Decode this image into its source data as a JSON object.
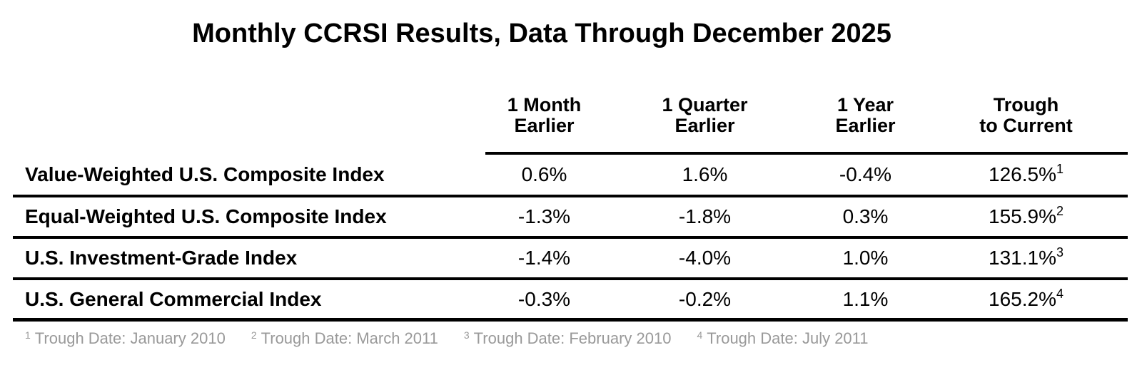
{
  "title": "Monthly CCRSI Results, Data Through December 2025",
  "colors": {
    "text": "#000000",
    "footnote_text": "#999999",
    "rule": "#000000",
    "background": "#ffffff"
  },
  "header_columns": [
    {
      "line1": "1 Month",
      "line2": "Earlier"
    },
    {
      "line1": "1 Quarter",
      "line2": "Earlier"
    },
    {
      "line1": "1 Year",
      "line2": "Earlier"
    },
    {
      "line1": "Trough",
      "line2": "to Current"
    }
  ],
  "chart_data": {
    "type": "table",
    "title": "Monthly CCRSI Results, Data Through December 2025",
    "columns": [
      "1 Month Earlier",
      "1 Quarter Earlier",
      "1 Year Earlier",
      "Trough to Current"
    ],
    "rows": [
      {
        "label": "Value-Weighted U.S. Composite Index",
        "values": [
          "0.6%",
          "1.6%",
          "-0.4%",
          "126.5%"
        ],
        "values_numeric_pct": [
          0.6,
          1.6,
          -0.4,
          126.5
        ],
        "footnote_ref": "1"
      },
      {
        "label": "Equal-Weighted U.S. Composite Index",
        "values": [
          "-1.3%",
          "-1.8%",
          "0.3%",
          "155.9%"
        ],
        "values_numeric_pct": [
          -1.3,
          -1.8,
          0.3,
          155.9
        ],
        "footnote_ref": "2"
      },
      {
        "label": "U.S. Investment-Grade Index",
        "values": [
          "-1.4%",
          "-4.0%",
          "1.0%",
          "131.1%"
        ],
        "values_numeric_pct": [
          -1.4,
          -4.0,
          1.0,
          131.1
        ],
        "footnote_ref": "3"
      },
      {
        "label": "U.S. General Commercial Index",
        "values": [
          "-0.3%",
          "-0.2%",
          "1.1%",
          "165.2%"
        ],
        "values_numeric_pct": [
          -0.3,
          -0.2,
          1.1,
          165.2
        ],
        "footnote_ref": "4"
      }
    ]
  },
  "footnotes": [
    {
      "ref": "1",
      "text": "Trough Date: January 2010"
    },
    {
      "ref": "2",
      "text": "Trough Date: March 2011"
    },
    {
      "ref": "3",
      "text": "Trough Date: February 2010"
    },
    {
      "ref": "4",
      "text": "Trough Date: July 2011"
    }
  ]
}
